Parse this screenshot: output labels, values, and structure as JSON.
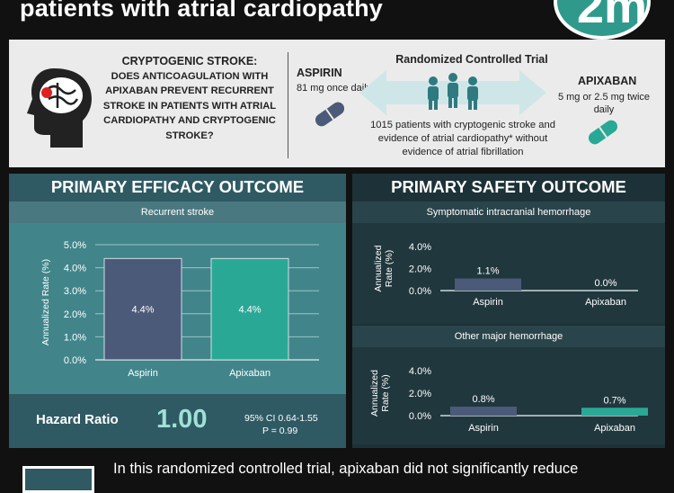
{
  "header": {
    "title": "patients with atrial cardiopathy",
    "logo_text": "2m"
  },
  "question": {
    "heading": "CRYPTOGENIC STROKE:",
    "text": "DOES ANTICOAGULATION WITH APIXABAN PREVENT RECURRENT STROKE IN PATIENTS WITH ATRIAL CARDIOPATHY AND CRYPTOGENIC STROKE?"
  },
  "trial": {
    "title": "Randomized Controlled Trial",
    "aspirin_name": "ASPIRIN",
    "aspirin_dose": "81 mg once daily",
    "apixaban_name": "APIXABAN",
    "apixaban_dose": "5 mg or 2.5 mg twice daily",
    "description": "1015 patients with cryptogenic stroke and evidence of atrial cardiopathy* without evidence of atrial fibrillation"
  },
  "efficacy": {
    "title": "PRIMARY EFFICACY OUTCOME",
    "subtitle": "Recurrent stroke",
    "hr_label": "Hazard Ratio",
    "hr_value": "1.00",
    "ci": "95% CI 0.64-1.55",
    "p": "P = 0.99"
  },
  "safety": {
    "title": "PRIMARY SAFETY OUTCOME",
    "sub1": "Symptomatic intracranial hemorrhage",
    "sub2": "Other major hemorrhage"
  },
  "colors": {
    "aspirin": "#4b5a78",
    "apixaban": "#2aa896",
    "teal_dark": "#2f5a63",
    "accent_red": "#e02020"
  },
  "chart_data": [
    {
      "type": "bar",
      "title": "Recurrent stroke",
      "ylabel": "Annualized Rate (%)",
      "categories": [
        "Aspirin",
        "Apixaban"
      ],
      "values": [
        4.4,
        4.4
      ],
      "value_labels": [
        "4.4%",
        "4.4%"
      ],
      "yticks": [
        "0.0%",
        "1.0%",
        "2.0%",
        "3.0%",
        "4.0%",
        "5.0%"
      ],
      "ylim": [
        0,
        5
      ],
      "grid": true
    },
    {
      "type": "bar",
      "title": "Symptomatic intracranial hemorrhage",
      "ylabel": "Annualized Rate (%)",
      "categories": [
        "Aspirin",
        "Apixaban"
      ],
      "values": [
        1.1,
        0.0
      ],
      "value_labels": [
        "1.1%",
        "0.0%"
      ],
      "yticks": [
        "0.0%",
        "2.0%",
        "4.0%"
      ],
      "ylim": [
        0,
        4
      ],
      "grid": false
    },
    {
      "type": "bar",
      "title": "Other major hemorrhage",
      "ylabel": "Annualized Rate (%)",
      "categories": [
        "Aspirin",
        "Apixaban"
      ],
      "values": [
        0.8,
        0.7
      ],
      "value_labels": [
        "0.8%",
        "0.7%"
      ],
      "yticks": [
        "0.0%",
        "2.0%",
        "4.0%"
      ],
      "ylim": [
        0,
        4
      ],
      "grid": false
    }
  ],
  "conclusion": {
    "text": "In this randomized controlled trial, apixaban did not significantly reduce"
  }
}
